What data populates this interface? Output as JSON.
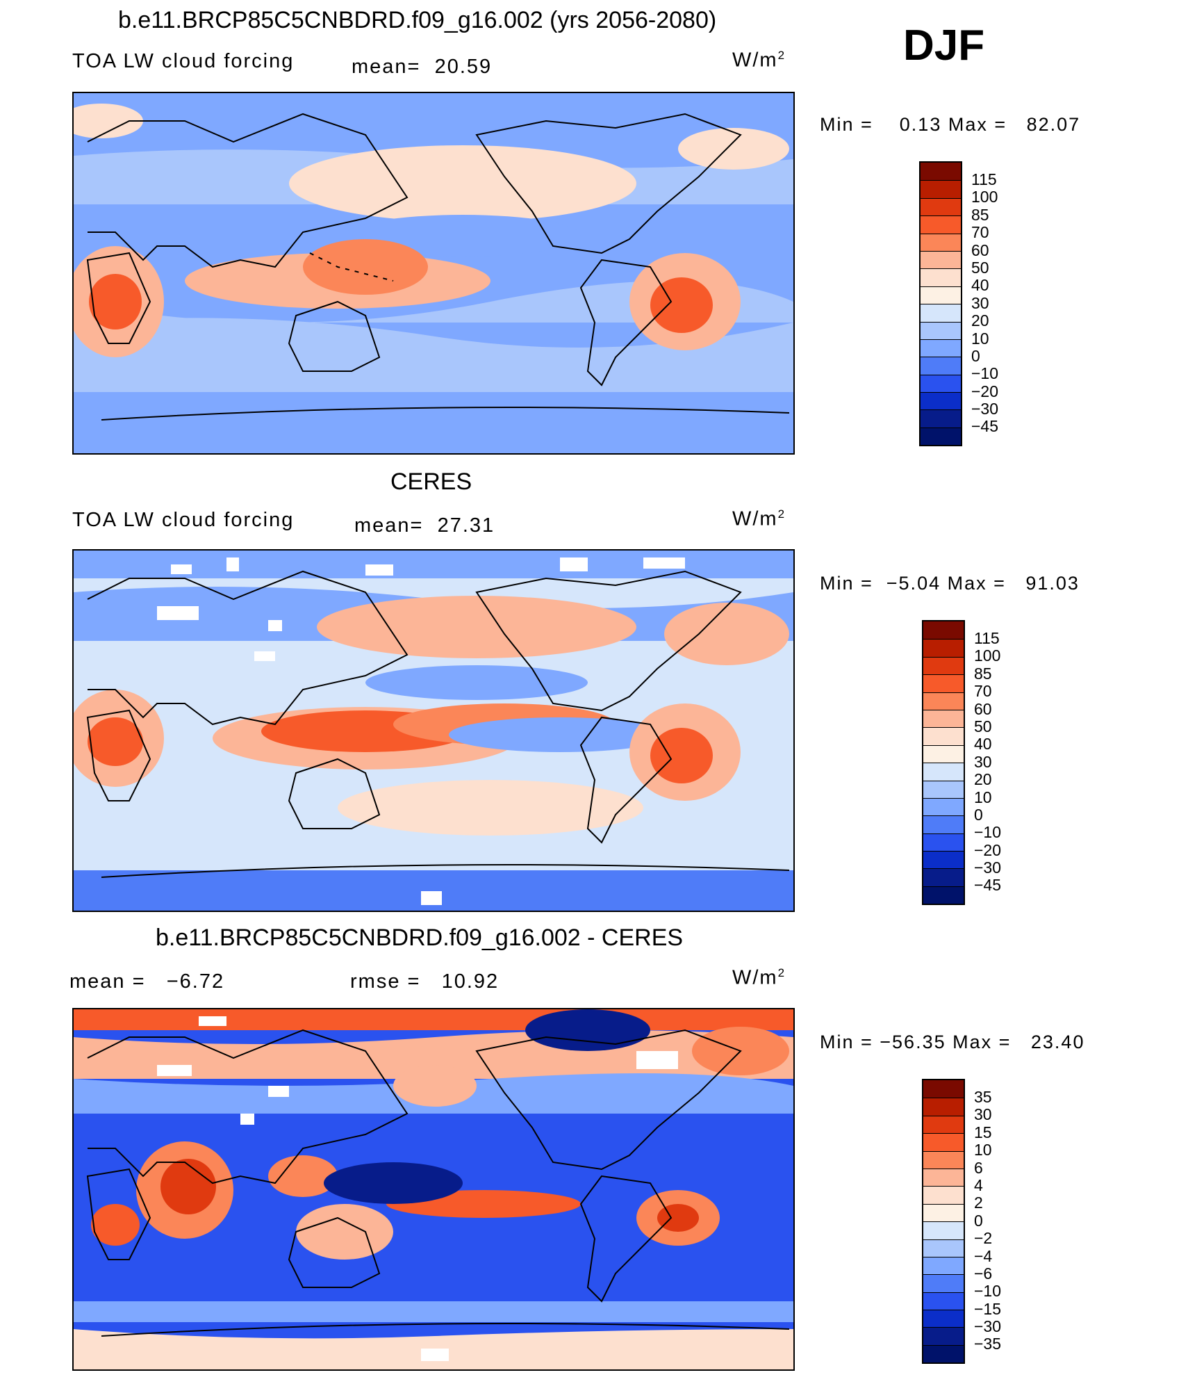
{
  "season": "DJF",
  "panels": [
    {
      "id": "model",
      "title": "b.e11.BRCP85C5CNBDRD.f09_g16.002 (yrs 2056-2080)",
      "left_label": "TOA LW cloud forcing",
      "mid_label": "mean=  20.59",
      "units_base": "W/m",
      "units_exp": "2",
      "minmax": "Min =    0.13 Max =   82.07",
      "levels": [
        "115",
        "100",
        "85",
        "70",
        "60",
        "50",
        "40",
        "30",
        "20",
        "10",
        "0",
        "−10",
        "−20",
        "−30",
        "−45"
      ]
    },
    {
      "id": "obs",
      "title": "CERES",
      "left_label": "TOA LW cloud forcing",
      "mid_label": "mean=  27.31",
      "units_base": "W/m",
      "units_exp": "2",
      "minmax": "Min =  −5.04 Max =   91.03",
      "levels": [
        "115",
        "100",
        "85",
        "70",
        "60",
        "50",
        "40",
        "30",
        "20",
        "10",
        "0",
        "−10",
        "−20",
        "−30",
        "−45"
      ]
    },
    {
      "id": "diff",
      "title": "b.e11.BRCP85C5CNBDRD.f09_g16.002 - CERES",
      "left_label": "mean =   −6.72",
      "mid_label": "rmse =   10.92",
      "units_base": "W/m",
      "units_exp": "2",
      "minmax": "Min = −56.35 Max =   23.40",
      "levels": [
        "35",
        "30",
        "15",
        "10",
        "6",
        "4",
        "2",
        "0",
        "−2",
        "−4",
        "−6",
        "−10",
        "−15",
        "−30",
        "−35"
      ]
    }
  ],
  "colors": {
    "palette_top_to_bottom": [
      "#7a0a00",
      "#b81e00",
      "#e03a10",
      "#f75a2a",
      "#fb8658",
      "#fcb597",
      "#fde0cf",
      "#fdf1e4",
      "#d6e6fb",
      "#a9c6fc",
      "#7fa8ff",
      "#4f7cf8",
      "#2a52ef",
      "#0b2ec9",
      "#071c8a",
      "#00126a"
    ]
  }
}
